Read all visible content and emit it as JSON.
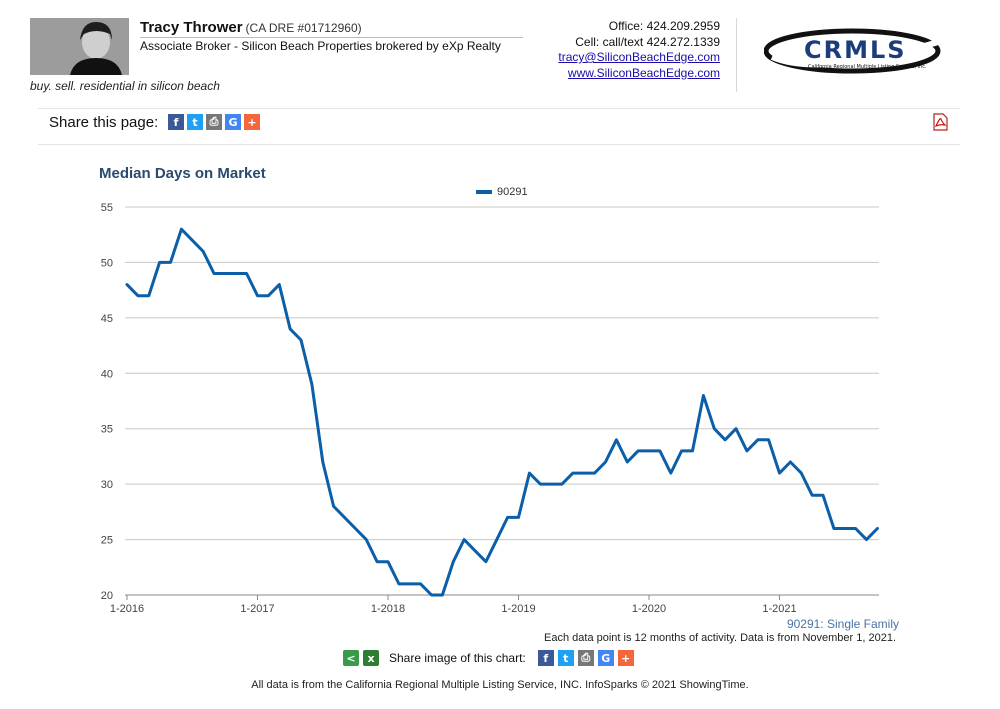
{
  "agent": {
    "name": "Tracy Thrower",
    "license": "(CA DRE #01712960)",
    "title": "Associate Broker - Silicon Beach Properties brokered by eXp Realty",
    "tagline": "buy. sell. residential in silicon beach"
  },
  "contact": {
    "office": "Office: 424.209.2959",
    "cell": "Cell: call/text 424.272.1339",
    "email": "tracy@SiliconBeachEdge.com",
    "website": "www.SiliconBeachEdge.com"
  },
  "logo": {
    "text": "CRMLS",
    "subtext": "California Regional Multiple Listing Service, Inc."
  },
  "share": {
    "label": "Share this page:",
    "icons": [
      "facebook-icon",
      "twitter-icon",
      "print-icon",
      "google-icon",
      "add-icon"
    ],
    "image_label": "Share image of this chart:"
  },
  "colors": {
    "series": "#0b5ea8",
    "title": "#2a4a6e",
    "grid": "#c8c8c8",
    "facebook": "#3b5998",
    "twitter": "#1da1f2",
    "print": "#777777",
    "google": "#4285f4",
    "add": "#f4663b"
  },
  "chart_data": {
    "type": "line",
    "title": "Median Days on Market",
    "xlabel": "",
    "ylabel": "",
    "ylim": [
      20,
      55
    ],
    "yticks": [
      20,
      25,
      30,
      35,
      40,
      45,
      50,
      55
    ],
    "xticks": [
      "1-2016",
      "1-2017",
      "1-2018",
      "1-2019",
      "1-2020",
      "1-2021"
    ],
    "grid": true,
    "legend_position": "top-center",
    "series": [
      {
        "name": "90291",
        "x": [
          "1-2016",
          "2-2016",
          "3-2016",
          "4-2016",
          "5-2016",
          "6-2016",
          "7-2016",
          "8-2016",
          "9-2016",
          "10-2016",
          "11-2016",
          "12-2016",
          "1-2017",
          "2-2017",
          "3-2017",
          "4-2017",
          "5-2017",
          "6-2017",
          "7-2017",
          "8-2017",
          "9-2017",
          "10-2017",
          "11-2017",
          "12-2017",
          "1-2018",
          "2-2018",
          "3-2018",
          "4-2018",
          "5-2018",
          "6-2018",
          "7-2018",
          "8-2018",
          "9-2018",
          "10-2018",
          "11-2018",
          "12-2018",
          "1-2019",
          "2-2019",
          "3-2019",
          "4-2019",
          "5-2019",
          "6-2019",
          "7-2019",
          "8-2019",
          "9-2019",
          "10-2019",
          "11-2019",
          "12-2019",
          "1-2020",
          "2-2020",
          "3-2020",
          "4-2020",
          "5-2020",
          "6-2020",
          "7-2020",
          "8-2020",
          "9-2020",
          "10-2020",
          "11-2020",
          "12-2020",
          "1-2021",
          "2-2021",
          "3-2021",
          "4-2021",
          "5-2021",
          "6-2021",
          "7-2021",
          "8-2021",
          "9-2021",
          "10-2021"
        ],
        "values": [
          48,
          47,
          47,
          50,
          50,
          53,
          52,
          51,
          49,
          49,
          49,
          49,
          47,
          47,
          48,
          44,
          43,
          39,
          32,
          28,
          27,
          26,
          25,
          23,
          23,
          21,
          21,
          21,
          20,
          20,
          23,
          25,
          24,
          23,
          25,
          27,
          27,
          31,
          30,
          30,
          30,
          31,
          31,
          31,
          32,
          34,
          32,
          33,
          33,
          33,
          31,
          33,
          33,
          38,
          35,
          34,
          35,
          33,
          34,
          34,
          31,
          32,
          31,
          29,
          29,
          26,
          26,
          26,
          25,
          26
        ]
      }
    ]
  },
  "subtitle": "90291: Single Family",
  "note": "Each data point is 12 months of activity. Data is from November 1, 2021.",
  "footer": "All data is from the California Regional Multiple Listing Service, INC. InfoSparks © 2021 ShowingTime."
}
